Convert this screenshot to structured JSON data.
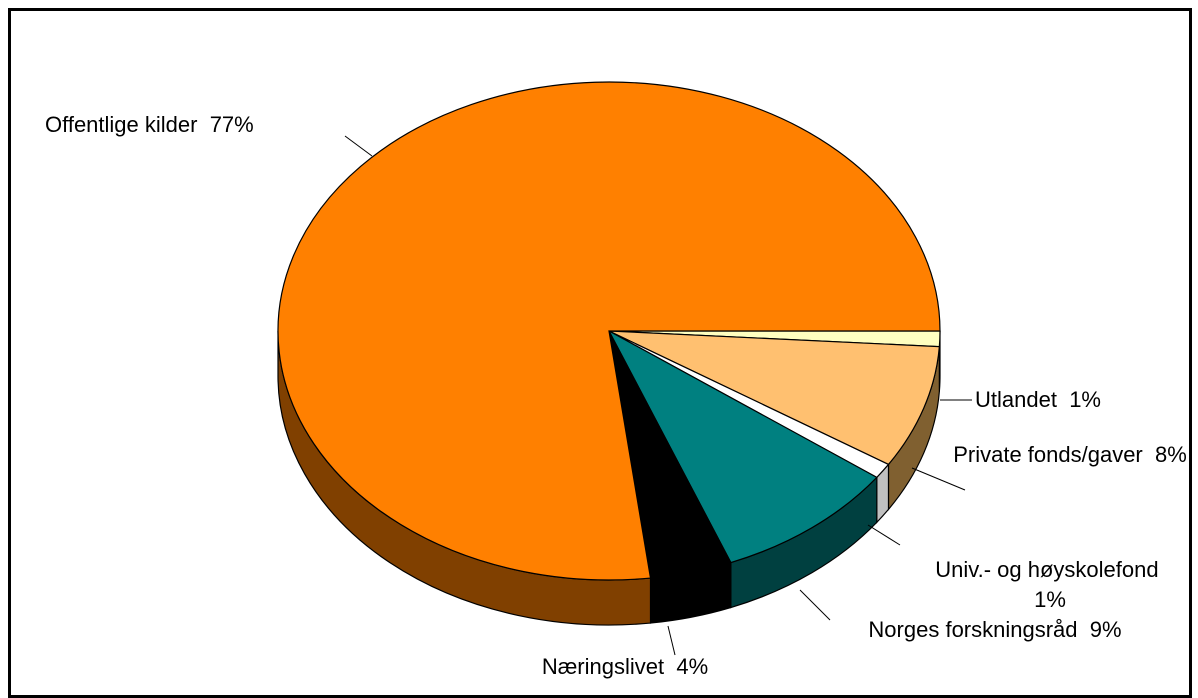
{
  "chart_data": {
    "type": "pie",
    "categories": [
      "Utlandet",
      "Private fonds/gaver",
      "Univ.- og høyskolefond",
      "Norges forskningsråd",
      "Næringslivet",
      "Offentlige kilder"
    ],
    "values": [
      1,
      8,
      1,
      9,
      4,
      77
    ],
    "value_labels": [
      "1%",
      "8%",
      "1%",
      "9%",
      "4%",
      "77%"
    ],
    "colors": [
      "#ffffc0",
      "#ffc070",
      "#ffffff",
      "#008080",
      "#000000",
      "#ff8000"
    ],
    "side_colors": [
      "#808060",
      "#806030",
      "#c0c0c0",
      "#004040",
      "#000000",
      "#804000"
    ]
  }
}
